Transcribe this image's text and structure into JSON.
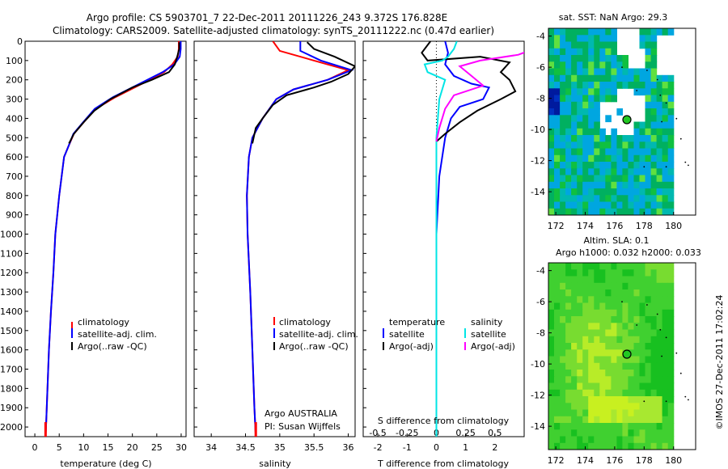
{
  "header": {
    "line1": "Argo profile: CS 5903701_7 22-Dec-2011 20111226_243 9.372S 176.828E",
    "line2": "Climatology: CARS2009. Satellite-adjusted climatology: synTS_20111222.nc (0.47d earlier)"
  },
  "colors": {
    "climatology": "#ff0000",
    "satellite": "#0000ff",
    "argo": "#000000",
    "salinity_satellite": "#00e5e5",
    "salinity_argo": "#ff00ff"
  },
  "chart_data": [
    {
      "type": "line",
      "name": "temperature-profile",
      "xlabel": "temperature (deg C)",
      "ylabel": "",
      "xlim": [
        -2,
        31
      ],
      "ylim": [
        0,
        2050
      ],
      "y_reversed": true,
      "x_ticks": [
        0,
        5,
        10,
        15,
        20,
        25,
        30
      ],
      "y_ticks": [
        0,
        100,
        200,
        300,
        400,
        500,
        600,
        700,
        800,
        900,
        1000,
        1100,
        1200,
        1300,
        1400,
        1500,
        1600,
        1700,
        1800,
        1900,
        2000
      ],
      "legend": [
        "climatology",
        "satellite-adj. clim.",
        "Argo(..raw -QC)"
      ],
      "series": [
        {
          "name": "climatology",
          "points": [
            [
              29.5,
              0
            ],
            [
              29.5,
              40
            ],
            [
              29.3,
              80
            ],
            [
              28.2,
              120
            ],
            [
              26.5,
              160
            ],
            [
              22,
              220
            ],
            [
              16.5,
              290
            ],
            [
              12.5,
              350
            ],
            [
              10,
              420
            ],
            [
              8,
              480
            ],
            [
              6.8,
              550
            ],
            [
              6,
              600
            ],
            [
              5.5,
              700
            ],
            [
              5,
              800
            ],
            [
              4.6,
              900
            ],
            [
              4.2,
              1000
            ],
            [
              3.8,
              1200
            ],
            [
              3.3,
              1400
            ],
            [
              2.9,
              1600
            ],
            [
              2.6,
              1800
            ],
            [
              2.3,
              2000
            ],
            [
              2.2,
              2050
            ]
          ]
        },
        {
          "name": "satellite-adj. clim.",
          "points": [
            [
              29.9,
              0
            ],
            [
              29.9,
              40
            ],
            [
              29.7,
              80
            ],
            [
              28.6,
              120
            ],
            [
              26.2,
              160
            ],
            [
              21.5,
              220
            ],
            [
              16,
              290
            ],
            [
              12.3,
              350
            ],
            [
              9.9,
              420
            ],
            [
              7.9,
              480
            ],
            [
              6.8,
              550
            ],
            [
              6,
              600
            ],
            [
              5.5,
              700
            ],
            [
              5,
              800
            ],
            [
              4.6,
              900
            ],
            [
              4.2,
              1000
            ],
            [
              3.8,
              1200
            ],
            [
              3.3,
              1400
            ],
            [
              2.9,
              1600
            ],
            [
              2.6,
              1800
            ],
            [
              2.3,
              2000
            ],
            [
              2.2,
              2050
            ]
          ]
        },
        {
          "name": "Argo(..raw -QC)",
          "points": [
            [
              29.6,
              5
            ],
            [
              29.6,
              40
            ],
            [
              29.2,
              80
            ],
            [
              28.7,
              120
            ],
            [
              27.5,
              160
            ],
            [
              24,
              200
            ],
            [
              20,
              240
            ],
            [
              15.5,
              300
            ],
            [
              12.2,
              360
            ],
            [
              10,
              420
            ],
            [
              8,
              480
            ],
            [
              7,
              530
            ]
          ]
        }
      ]
    },
    {
      "type": "line",
      "name": "salinity-profile",
      "xlabel": "salinity",
      "ylabel": "",
      "xlim": [
        33.75,
        36.1
      ],
      "ylim": [
        0,
        2050
      ],
      "y_reversed": true,
      "x_ticks": [
        34,
        34.5,
        35,
        35.5,
        36
      ],
      "legend": [
        "climatology",
        "satellite-adj. clim.",
        "Argo(..raw -QC)"
      ],
      "annotation": [
        "Argo AUSTRALIA",
        "PI: Susan Wijffels"
      ],
      "series": [
        {
          "name": "climatology",
          "points": [
            [
              34.9,
              0
            ],
            [
              35,
              50
            ],
            [
              35.5,
              100
            ],
            [
              36,
              150
            ],
            [
              35.7,
              200
            ],
            [
              35.2,
              250
            ],
            [
              34.95,
              300
            ],
            [
              34.75,
              400
            ],
            [
              34.6,
              500
            ],
            [
              34.55,
              600
            ],
            [
              34.52,
              800
            ],
            [
              34.53,
              1000
            ],
            [
              34.57,
              1300
            ],
            [
              34.6,
              1600
            ],
            [
              34.63,
              1900
            ],
            [
              34.65,
              2050
            ]
          ]
        },
        {
          "name": "satellite-adj. clim.",
          "points": [
            [
              35.3,
              0
            ],
            [
              35.3,
              50
            ],
            [
              35.6,
              100
            ],
            [
              36.05,
              150
            ],
            [
              35.7,
              200
            ],
            [
              35.2,
              250
            ],
            [
              34.95,
              300
            ],
            [
              34.75,
              400
            ],
            [
              34.6,
              500
            ],
            [
              34.55,
              600
            ],
            [
              34.52,
              800
            ],
            [
              34.53,
              1000
            ],
            [
              34.57,
              1300
            ],
            [
              34.6,
              1600
            ],
            [
              34.63,
              1900
            ],
            [
              34.65,
              2050
            ]
          ]
        },
        {
          "name": "Argo(..raw -QC)",
          "points": [
            [
              35.4,
              5
            ],
            [
              35.5,
              40
            ],
            [
              35.8,
              80
            ],
            [
              36.1,
              130
            ],
            [
              36,
              170
            ],
            [
              35.75,
              210
            ],
            [
              35.5,
              240
            ],
            [
              35.1,
              280
            ],
            [
              34.9,
              330
            ],
            [
              34.75,
              400
            ],
            [
              34.65,
              450
            ],
            [
              34.6,
              530
            ]
          ]
        }
      ]
    },
    {
      "type": "line",
      "name": "difference-profile",
      "xlabel": "T difference from climatology",
      "xlabel2": "S difference from climatology",
      "xlim": [
        -2.5,
        3.0
      ],
      "ylim": [
        0,
        2050
      ],
      "y_reversed": true,
      "x_ticks": [
        -2,
        -1,
        0,
        1,
        2
      ],
      "x_ticks_top": [
        -0.5,
        -0.25,
        0,
        0.25,
        0.5
      ],
      "legend_left": [
        "temperature",
        "satellite",
        "Argo(-adj)"
      ],
      "legend_right": [
        "salinity",
        "satellite",
        "Argo(-adj)"
      ],
      "series": [
        {
          "name": "temperature satellite",
          "points": [
            [
              0.3,
              0
            ],
            [
              0.4,
              60
            ],
            [
              0.3,
              120
            ],
            [
              0.6,
              180
            ],
            [
              1.2,
              220
            ],
            [
              1.8,
              240
            ],
            [
              1.6,
              300
            ],
            [
              0.8,
              340
            ],
            [
              0.5,
              400
            ],
            [
              0.3,
              500
            ],
            [
              0.1,
              700
            ],
            [
              0,
              1000
            ],
            [
              0,
              2050
            ]
          ]
        },
        {
          "name": "temperature Argo(-adj)",
          "points": [
            [
              -0.2,
              0
            ],
            [
              -0.5,
              60
            ],
            [
              -0.3,
              100
            ],
            [
              1.5,
              80
            ],
            [
              2.5,
              110
            ],
            [
              2.2,
              160
            ],
            [
              2.5,
              200
            ],
            [
              2.7,
              260
            ],
            [
              2.2,
              300
            ],
            [
              1.4,
              360
            ],
            [
              0.8,
              420
            ],
            [
              0.3,
              480
            ],
            [
              0,
              520
            ]
          ]
        },
        {
          "name": "salinity satellite",
          "points": [
            [
              0.7,
              0
            ],
            [
              0.6,
              40
            ],
            [
              0.4,
              80
            ],
            [
              0.2,
              100
            ],
            [
              -0.4,
              120
            ],
            [
              -0.3,
              160
            ],
            [
              0.3,
              200
            ],
            [
              0.1,
              300
            ],
            [
              0,
              500
            ],
            [
              0,
              2050
            ]
          ]
        },
        {
          "name": "salinity Argo(-adj)",
          "points": [
            [
              3.5,
              30
            ],
            [
              2.8,
              70
            ],
            [
              1.5,
              100
            ],
            [
              0.8,
              130
            ],
            [
              1.2,
              180
            ],
            [
              1.6,
              230
            ],
            [
              0.6,
              280
            ],
            [
              0.3,
              350
            ],
            [
              0.1,
              450
            ],
            [
              0,
              520
            ]
          ]
        }
      ]
    },
    {
      "type": "heatmap",
      "name": "sst-map",
      "title": "sat. SST: NaN Argo: 29.3",
      "xlim": [
        171.5,
        181.5
      ],
      "ylim": [
        -15.5,
        -3.5
      ],
      "x_ticks": [
        172,
        174,
        176,
        178,
        180
      ],
      "y_ticks": [
        -4,
        -6,
        -8,
        -10,
        -12,
        -14
      ],
      "marker": {
        "lon": 176.828,
        "lat": -9.372
      }
    },
    {
      "type": "heatmap",
      "name": "sla-map",
      "title": "Altim. SLA: 0.1",
      "subtitle": "Argo h1000: 0.032 h2000: 0.033",
      "xlim": [
        171.5,
        181.5
      ],
      "ylim": [
        -15.5,
        -3.5
      ],
      "x_ticks": [
        172,
        174,
        176,
        178,
        180
      ],
      "y_ticks": [
        -4,
        -6,
        -8,
        -10,
        -12,
        -14
      ],
      "marker": {
        "lon": 176.828,
        "lat": -9.372
      }
    }
  ],
  "footer": {
    "stamp": "©IMOS 27-Dec-2011 17:02:24"
  }
}
